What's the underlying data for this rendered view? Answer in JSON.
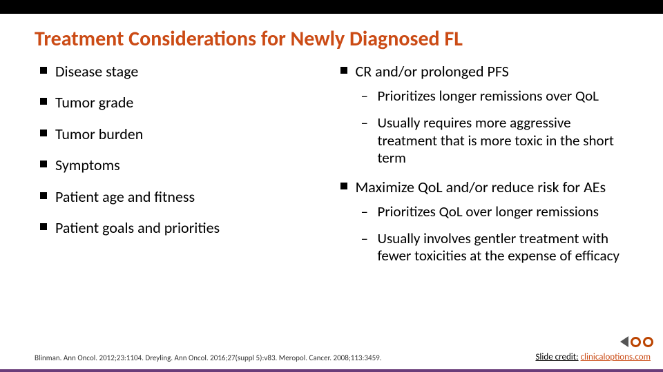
{
  "title": "Treatment Considerations for Newly Diagnosed FL",
  "left": [
    "Disease stage",
    "Tumor grade",
    "Tumor burden",
    "Symptoms",
    "Patient age and fitness",
    "Patient goals and priorities"
  ],
  "right": [
    {
      "type": "main",
      "text": "CR and/or prolonged PFS"
    },
    {
      "type": "sub",
      "text": "Prioritizes longer remissions over QoL"
    },
    {
      "type": "sub",
      "text": "Usually requires more aggressive treatment that is more toxic in the short term"
    },
    {
      "type": "main",
      "text": "Maximize QoL and/or reduce risk for AEs"
    },
    {
      "type": "sub",
      "text": "Prioritizes QoL over longer remissions"
    },
    {
      "type": "sub",
      "text": "Usually involves gentler treatment with fewer toxicities at the expense of efficacy"
    }
  ],
  "citation": "Blinman. Ann Oncol. 2012;23:1104. Dreyling. Ann Oncol. 2016;27(suppl 5):v83. Meropol. Cancer. 2008;113:3459.",
  "credit_label": "Slide credit:",
  "credit_link": "clinicaloptions.com",
  "colors": {
    "accent": "#cb4b15",
    "topbar": "#000000",
    "bottomline": "#6a3d7a"
  }
}
